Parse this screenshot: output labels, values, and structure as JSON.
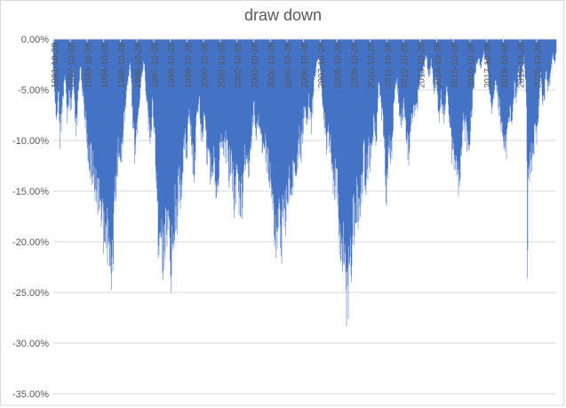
{
  "chart_data": {
    "type": "bar",
    "title": "draw down",
    "series_name": "draw down",
    "ylim": [
      -35,
      0
    ],
    "y_tick_labels": [
      "0.00%",
      "-5.00%",
      "-10.00%",
      "-15.00%",
      "-20.00%",
      "-25.00%",
      "-30.00%",
      "-35.00%"
    ],
    "x_tick_labels": [
      "1991-10-28",
      "1992-10-28",
      "1993-10-28",
      "1994-10-28",
      "1995-10-28",
      "1996-10-28",
      "1997-10-28",
      "1998-10-28",
      "1999-10-28",
      "2000-10-28",
      "2001-10-28",
      "2002-10-28",
      "2003-10-28",
      "2004-10-28",
      "2005-10-28",
      "2006-10-28",
      "2007-10-28",
      "2008-10-28",
      "2009-10-28",
      "2010-10-28",
      "2011-10-28",
      "2012-10-28",
      "2013-10-28",
      "2014-10-28",
      "2015-10-28",
      "2016-10-28",
      "2017-10-28",
      "2018-10-28",
      "2019-10-28",
      "2020-10-28"
    ],
    "x_range_years": [
      1991.8,
      2022.0
    ],
    "grid": true,
    "legend": "none",
    "colors": {
      "bar": "#4472C4",
      "grid": "#D9D9D9",
      "axis": "#D9D9D9",
      "border": "#D9D9D9",
      "text": "#595959",
      "background": "#FFFFFF"
    },
    "envelope_points": [
      [
        1991.83,
        -4
      ],
      [
        1991.9,
        -6.5
      ],
      [
        1992.0,
        -8.3
      ],
      [
        1992.1,
        -5.5
      ],
      [
        1992.2,
        -11.3
      ],
      [
        1992.35,
        -7.5
      ],
      [
        1992.5,
        -3.8
      ],
      [
        1992.62,
        -9.3
      ],
      [
        1992.75,
        -6.5
      ],
      [
        1992.9,
        -7.8
      ],
      [
        1993.0,
        -3.2
      ],
      [
        1993.15,
        -11.5
      ],
      [
        1993.3,
        -6.5
      ],
      [
        1993.42,
        -2.8
      ],
      [
        1993.55,
        -5.5
      ],
      [
        1993.7,
        -8.5
      ],
      [
        1993.8,
        -11
      ],
      [
        1993.9,
        -12.5
      ],
      [
        1994.05,
        -14
      ],
      [
        1994.2,
        -15.2
      ],
      [
        1994.35,
        -16.5
      ],
      [
        1994.5,
        -18
      ],
      [
        1994.65,
        -19.5
      ],
      [
        1994.8,
        -21.5
      ],
      [
        1994.9,
        -23.4
      ],
      [
        1995.0,
        -21.8
      ],
      [
        1995.1,
        -24.5
      ],
      [
        1995.2,
        -23.2
      ],
      [
        1995.35,
        -25.6
      ],
      [
        1995.45,
        -20
      ],
      [
        1995.58,
        -16.5
      ],
      [
        1995.7,
        -13
      ],
      [
        1995.85,
        -14.8
      ],
      [
        1996.0,
        -11
      ],
      [
        1996.15,
        -7.5
      ],
      [
        1996.3,
        -4.5
      ],
      [
        1996.42,
        -2.5
      ],
      [
        1996.55,
        -8
      ],
      [
        1996.68,
        -13.3
      ],
      [
        1996.8,
        -10.5
      ],
      [
        1996.95,
        -7
      ],
      [
        1997.1,
        -4.2
      ],
      [
        1997.25,
        -2.3
      ],
      [
        1997.4,
        -6.5
      ],
      [
        1997.5,
        -9.5
      ],
      [
        1997.62,
        -11.8
      ],
      [
        1997.75,
        -7.5
      ],
      [
        1997.85,
        -10
      ],
      [
        1997.95,
        -14
      ],
      [
        1998.05,
        -19
      ],
      [
        1998.1,
        -26.2
      ],
      [
        1998.2,
        -21
      ],
      [
        1998.3,
        -22.5
      ],
      [
        1998.4,
        -25.3
      ],
      [
        1998.5,
        -21.5
      ],
      [
        1998.62,
        -23.2
      ],
      [
        1998.72,
        -21.8
      ],
      [
        1998.8,
        -24.7
      ],
      [
        1998.87,
        -27.3
      ],
      [
        1998.95,
        -23.5
      ],
      [
        1999.05,
        -21
      ],
      [
        1999.15,
        -18.5
      ],
      [
        1999.25,
        -19.8
      ],
      [
        1999.35,
        -16
      ],
      [
        1999.45,
        -18.6
      ],
      [
        1999.58,
        -14.5
      ],
      [
        1999.7,
        -11
      ],
      [
        1999.8,
        -13
      ],
      [
        1999.95,
        -8.7
      ],
      [
        2000.1,
        -12
      ],
      [
        2000.25,
        -14.5
      ],
      [
        2000.4,
        -10
      ],
      [
        2000.55,
        -6.5
      ],
      [
        2000.7,
        -11.2
      ],
      [
        2000.85,
        -9
      ],
      [
        2001.0,
        -12.3
      ],
      [
        2001.15,
        -13.5
      ],
      [
        2001.3,
        -15.3
      ],
      [
        2001.45,
        -13
      ],
      [
        2001.6,
        -16.5
      ],
      [
        2001.75,
        -14
      ],
      [
        2001.9,
        -11.2
      ],
      [
        2002.05,
        -13.3
      ],
      [
        2002.2,
        -12
      ],
      [
        2002.35,
        -14.8
      ],
      [
        2002.5,
        -13.5
      ],
      [
        2002.65,
        -18.3
      ],
      [
        2002.8,
        -16
      ],
      [
        2002.95,
        -17.5
      ],
      [
        2003.1,
        -18.9
      ],
      [
        2003.25,
        -15.2
      ],
      [
        2003.4,
        -13
      ],
      [
        2003.55,
        -14.5
      ],
      [
        2003.7,
        -11
      ],
      [
        2003.85,
        -8.2
      ],
      [
        2004.0,
        -10.5
      ],
      [
        2004.15,
        -9
      ],
      [
        2004.3,
        -12.3
      ],
      [
        2004.45,
        -11
      ],
      [
        2004.6,
        -13.8
      ],
      [
        2004.75,
        -14.5
      ],
      [
        2004.9,
        -17
      ],
      [
        2005.05,
        -20
      ],
      [
        2005.2,
        -23.8
      ],
      [
        2005.35,
        -21
      ],
      [
        2005.5,
        -22.5
      ],
      [
        2005.65,
        -18.5
      ],
      [
        2005.8,
        -20
      ],
      [
        2005.95,
        -16
      ],
      [
        2006.1,
        -17.5
      ],
      [
        2006.25,
        -14
      ],
      [
        2006.4,
        -15.5
      ],
      [
        2006.55,
        -11
      ],
      [
        2006.7,
        -12.5
      ],
      [
        2006.85,
        -8.5
      ],
      [
        2007.0,
        -9.5
      ],
      [
        2007.15,
        -7
      ],
      [
        2007.3,
        -9.7
      ],
      [
        2007.45,
        -5
      ],
      [
        2007.6,
        -3.2
      ],
      [
        2007.75,
        -2
      ],
      [
        2007.9,
        -5.5
      ],
      [
        2008.05,
        -8.5
      ],
      [
        2008.2,
        -12.3
      ],
      [
        2008.35,
        -11
      ],
      [
        2008.5,
        -14
      ],
      [
        2008.65,
        -17.5
      ],
      [
        2008.78,
        -15.5
      ],
      [
        2008.9,
        -19
      ],
      [
        2009.0,
        -22
      ],
      [
        2009.08,
        -24.5
      ],
      [
        2009.18,
        -23
      ],
      [
        2009.28,
        -27
      ],
      [
        2009.38,
        -29.2
      ],
      [
        2009.48,
        -27.5
      ],
      [
        2009.6,
        -28.3
      ],
      [
        2009.7,
        -24
      ],
      [
        2009.8,
        -20.5
      ],
      [
        2009.9,
        -22.5
      ],
      [
        2010.0,
        -18.5
      ],
      [
        2010.15,
        -20.5
      ],
      [
        2010.3,
        -17
      ],
      [
        2010.45,
        -13.5
      ],
      [
        2010.6,
        -16.3
      ],
      [
        2010.75,
        -12.5
      ],
      [
        2010.9,
        -14.5
      ],
      [
        2011.05,
        -9
      ],
      [
        2011.2,
        -11
      ],
      [
        2011.35,
        -4.5
      ],
      [
        2011.5,
        -8
      ],
      [
        2011.65,
        -10.5
      ],
      [
        2011.8,
        -17.1
      ],
      [
        2011.95,
        -12.5
      ],
      [
        2012.1,
        -12.8
      ],
      [
        2012.25,
        -8
      ],
      [
        2012.4,
        -4
      ],
      [
        2012.55,
        -7
      ],
      [
        2012.7,
        -9.5
      ],
      [
        2012.85,
        -7.5
      ],
      [
        2013.0,
        -11
      ],
      [
        2013.15,
        -12.7
      ],
      [
        2013.3,
        -10
      ],
      [
        2013.45,
        -7.5
      ],
      [
        2013.6,
        -8.5
      ],
      [
        2013.75,
        -5.5
      ],
      [
        2013.9,
        -4
      ],
      [
        2014.05,
        -3
      ],
      [
        2014.2,
        -1.7
      ],
      [
        2014.35,
        -4.5
      ],
      [
        2014.5,
        -2.5
      ],
      [
        2014.65,
        -6
      ],
      [
        2014.8,
        -4.5
      ],
      [
        2014.95,
        -8.8
      ],
      [
        2015.1,
        -6
      ],
      [
        2015.25,
        -9.8
      ],
      [
        2015.4,
        -5.5
      ],
      [
        2015.55,
        -8
      ],
      [
        2015.7,
        -12
      ],
      [
        2015.85,
        -14
      ],
      [
        2016.0,
        -15.5
      ],
      [
        2016.15,
        -16.6
      ],
      [
        2016.3,
        -13
      ],
      [
        2016.45,
        -9
      ],
      [
        2016.6,
        -11
      ],
      [
        2016.75,
        -12.4
      ],
      [
        2016.9,
        -8.5
      ],
      [
        2017.05,
        -5
      ],
      [
        2017.2,
        -3
      ],
      [
        2017.35,
        -2
      ],
      [
        2017.5,
        -3.2
      ],
      [
        2017.65,
        -1.5
      ],
      [
        2017.8,
        -2.5
      ],
      [
        2017.95,
        -4.7
      ],
      [
        2018.1,
        -8.7
      ],
      [
        2018.25,
        -6
      ],
      [
        2018.4,
        -5
      ],
      [
        2018.55,
        -7.5
      ],
      [
        2018.7,
        -9.5
      ],
      [
        2018.85,
        -11
      ],
      [
        2019.0,
        -12.4
      ],
      [
        2019.1,
        -10
      ],
      [
        2019.25,
        -8
      ],
      [
        2019.35,
        -9.7
      ],
      [
        2019.5,
        -5
      ],
      [
        2019.6,
        -7
      ],
      [
        2019.75,
        -3
      ],
      [
        2019.85,
        -5.5
      ],
      [
        2019.95,
        -3.5
      ],
      [
        2020.05,
        -2
      ],
      [
        2020.15,
        -4.2
      ],
      [
        2020.22,
        -9
      ],
      [
        2020.27,
        -27.4
      ],
      [
        2020.32,
        -14
      ],
      [
        2020.4,
        -16
      ],
      [
        2020.48,
        -13
      ],
      [
        2020.56,
        -15.5
      ],
      [
        2020.65,
        -12.7
      ],
      [
        2020.75,
        -9
      ],
      [
        2020.85,
        -11
      ],
      [
        2020.95,
        -8.5
      ],
      [
        2021.05,
        -3.5
      ],
      [
        2021.15,
        -7
      ],
      [
        2021.3,
        -6.3
      ],
      [
        2021.4,
        -3
      ],
      [
        2021.5,
        -5.5
      ],
      [
        2021.65,
        -4.2
      ],
      [
        2021.8,
        -1.7
      ],
      [
        2021.9,
        -3
      ],
      [
        2022.0,
        -1.2
      ]
    ]
  }
}
